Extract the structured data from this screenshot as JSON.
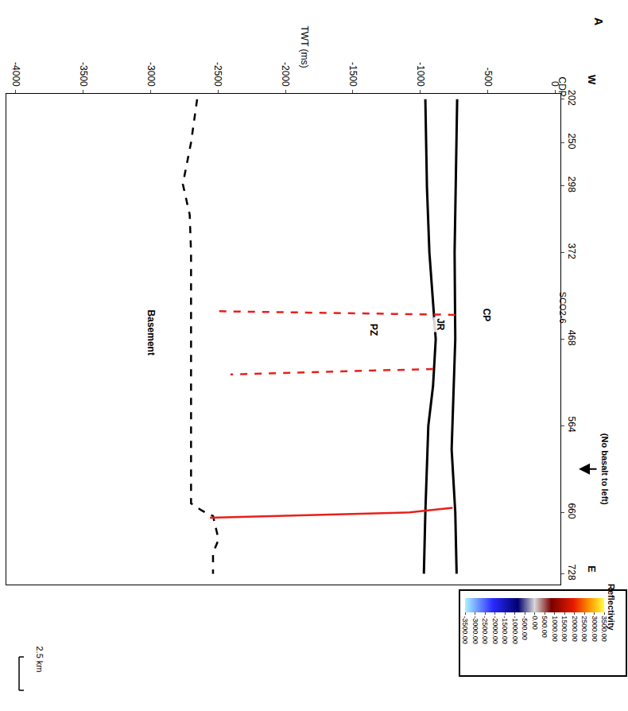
{
  "chart_data": {
    "type": "line",
    "title": "A",
    "x_label": "TWT (ms)",
    "y_label": "CDP",
    "xlim": [
      -4070,
      40
    ],
    "xticks": [
      -4000,
      -3500,
      -3000,
      -2500,
      -2000,
      -1500,
      -1000,
      -500,
      0
    ],
    "ylim": [
      740,
      196
    ],
    "yticks": [
      202,
      250,
      298,
      372,
      468,
      564,
      660,
      728
    ],
    "grid": false,
    "side_labels": {
      "west": "W",
      "east": "E"
    },
    "line_label": {
      "text": "SCO2-6",
      "y": 433
    },
    "arrow_note": {
      "text": "(No basalt to left)",
      "y": 612
    },
    "labels": [
      {
        "text": "CP",
        "x": -507,
        "y": 441
      },
      {
        "text": "JR",
        "x": -855,
        "y": 452
      },
      {
        "text": "PZ",
        "x": -1345,
        "y": 457
      },
      {
        "text": "Basement",
        "x": -2997,
        "y": 461
      }
    ],
    "series": [
      {
        "color": "#000000",
        "line_style": "solid",
        "x": [
          -726,
          -735,
          -745,
          -740,
          -767,
          -740,
          -730
        ],
        "y": [
          202,
          300,
          372,
          468,
          590,
          660,
          728
        ]
      },
      {
        "color": "#000000",
        "line_style": "solid",
        "x": [
          -962,
          -950,
          -932,
          -885,
          -905,
          -940,
          -962,
          -973
        ],
        "y": [
          202,
          300,
          372,
          468,
          520,
          564,
          660,
          728
        ]
      },
      {
        "color": "#000000",
        "line_style": "dash",
        "x": [
          -2655,
          -2700,
          -2761,
          -2710,
          -2700,
          -2700,
          -2700,
          -2620,
          -2537,
          -2496,
          -2537,
          -2537
        ],
        "y": [
          202,
          250,
          296,
          330,
          372,
          468,
          650,
          658,
          664,
          690,
          705,
          728
        ]
      },
      {
        "color": "#e8201a",
        "line_style": "dash",
        "x": [
          -740,
          -2496
        ],
        "y": [
          441,
          437
        ]
      },
      {
        "color": "#e8201a",
        "line_style": "dash",
        "x": [
          -903,
          -2407
        ],
        "y": [
          501,
          507
        ]
      },
      {
        "color": "#e8201a",
        "line_style": "solid",
        "x": [
          -760,
          -1080,
          -2560
        ],
        "y": [
          655,
          660,
          666
        ]
      }
    ],
    "colorbar": {
      "title": "Reflectivity",
      "range": [
        -3500,
        3500
      ],
      "ticks": [
        {
          "value": -3500,
          "label": "-3500.00"
        },
        {
          "value": -3000,
          "label": "-3000.00"
        },
        {
          "value": -2500,
          "label": "-2500.00"
        },
        {
          "value": -2000,
          "label": "-2000.00"
        },
        {
          "value": -1500,
          "label": "-1500.00"
        },
        {
          "value": -1000,
          "label": "-1000.00"
        },
        {
          "value": -500,
          "label": "-500.00"
        },
        {
          "value": 0,
          "label": "0.00"
        },
        {
          "value": 500,
          "label": "500.00"
        },
        {
          "value": 1000,
          "label": "1000.00"
        },
        {
          "value": 1500,
          "label": "1500.00"
        },
        {
          "value": 2000,
          "label": "2000.00"
        },
        {
          "value": 2500,
          "label": "2500.00"
        },
        {
          "value": 3000,
          "label": "3000.00"
        },
        {
          "value": 3500,
          "label": "3500.00"
        }
      ]
    },
    "scale_bar": "2.5 km"
  }
}
